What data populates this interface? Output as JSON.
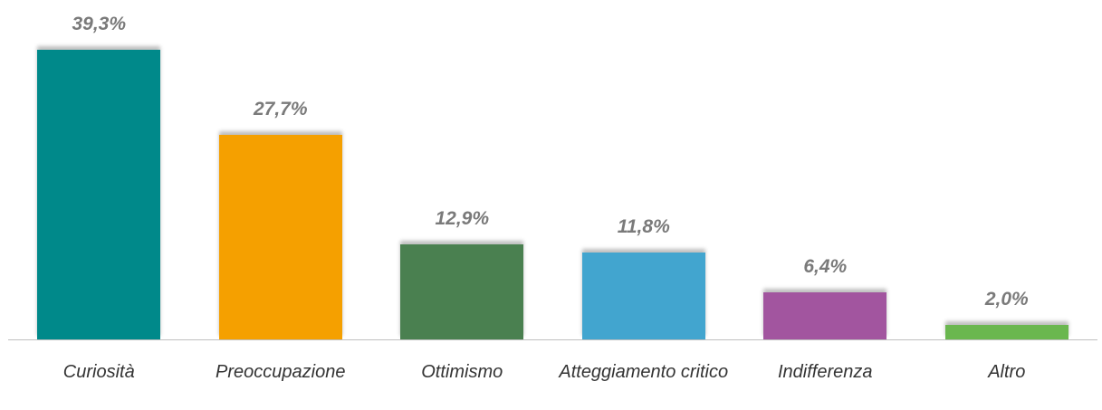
{
  "chart_data": {
    "type": "bar",
    "categories": [
      "Curiosità",
      "Preoccupazione",
      "Ottimismo",
      "Atteggiamento critico",
      "Indifferenza",
      "Altro"
    ],
    "values": [
      39.3,
      27.7,
      12.9,
      11.8,
      6.4,
      2.0
    ],
    "value_labels": [
      "39,3%",
      "27,7%",
      "12,9%",
      "11,8%",
      "6,4%",
      "2,0%"
    ],
    "colors": [
      "#00898a",
      "#f5a000",
      "#4a8050",
      "#42a5cf",
      "#a2559f",
      "#6ab74f"
    ]
  }
}
